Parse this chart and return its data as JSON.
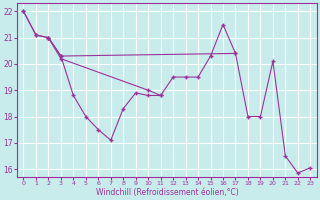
{
  "xlabel": "Windchill (Refroidissement éolien,°C)",
  "background_color": "#c8ecec",
  "grid_color": "#ffffff",
  "line_color": "#993399",
  "xlim": [
    -0.5,
    23.5
  ],
  "ylim": [
    15.7,
    22.3
  ],
  "xticks": [
    0,
    1,
    2,
    3,
    4,
    5,
    6,
    7,
    8,
    9,
    10,
    11,
    12,
    13,
    14,
    15,
    16,
    17,
    18,
    19,
    20,
    21,
    22,
    23
  ],
  "yticks": [
    16,
    17,
    18,
    19,
    20,
    21,
    22
  ],
  "line1_x": [
    0,
    1,
    2,
    3,
    10,
    11,
    12,
    13,
    14,
    15,
    16,
    17
  ],
  "line1_y": [
    22.0,
    21.1,
    21.0,
    20.2,
    19.0,
    18.8,
    19.5,
    19.5,
    19.5,
    20.3,
    21.5,
    20.4
  ],
  "line2_x": [
    2,
    3,
    4,
    5,
    6,
    7,
    8,
    9,
    10,
    11
  ],
  "line2_y": [
    21.0,
    20.3,
    18.8,
    18.0,
    17.5,
    17.1,
    18.3,
    18.9,
    18.8,
    18.8
  ],
  "line3_x": [
    0,
    1,
    2,
    3,
    17,
    18,
    19,
    20,
    21,
    22,
    23
  ],
  "line3_y": [
    22.0,
    21.1,
    21.0,
    20.3,
    20.4,
    18.0,
    18.0,
    20.1,
    16.5,
    15.85,
    16.05
  ]
}
